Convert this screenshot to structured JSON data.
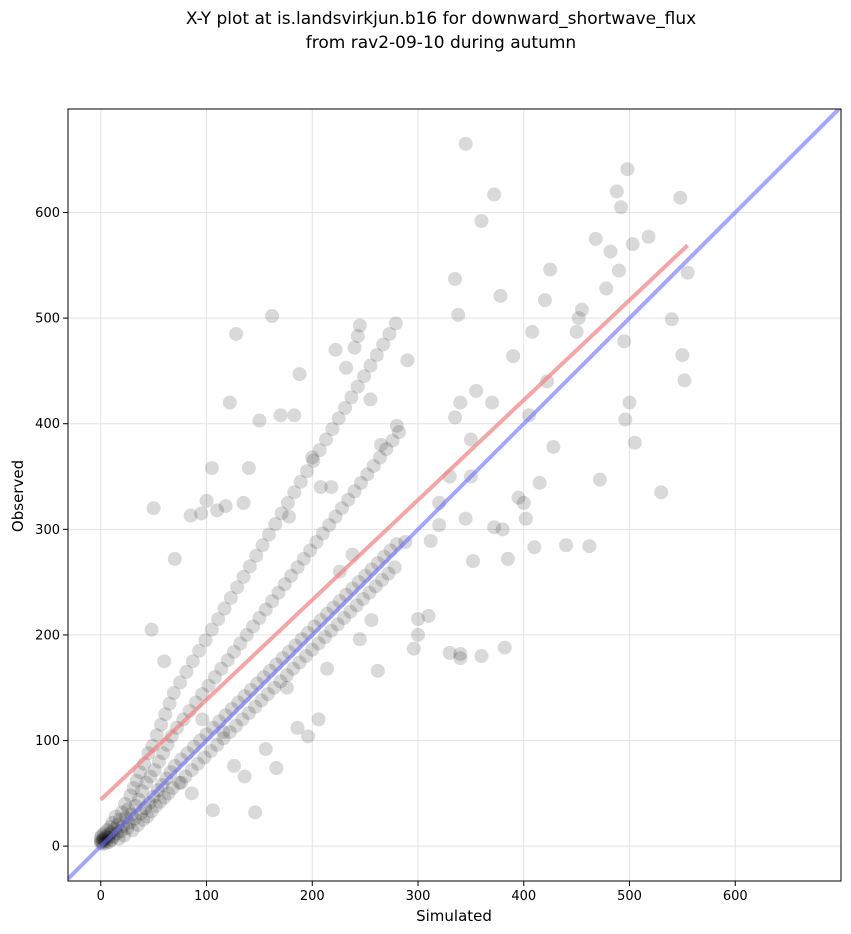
{
  "chart_data": {
    "type": "scatter",
    "title_line1": "X-Y plot at is.landsvirkjun.b16 for downward_shortwave_flux",
    "title_line2": "from rav2-09-10 during autumn",
    "xlabel": "Simulated",
    "ylabel": "Observed",
    "xlim": [
      -31,
      700
    ],
    "ylim": [
      -33,
      698
    ],
    "xticks": [
      0,
      100,
      200,
      300,
      400,
      500,
      600
    ],
    "yticks": [
      0,
      100,
      200,
      300,
      400,
      500,
      600
    ],
    "grid": true,
    "colors": {
      "points": "#000000",
      "fit_line": "#f08080",
      "identity_line": "#6a6aff"
    },
    "fit_line": {
      "x": [
        0,
        555
      ],
      "y": [
        44,
        569
      ]
    },
    "identity_line": {
      "x": [
        -31,
        700
      ],
      "y": [
        -31,
        700
      ]
    },
    "points": [
      [
        0,
        3
      ],
      [
        0,
        5
      ],
      [
        0,
        8
      ],
      [
        1,
        4
      ],
      [
        1,
        10
      ],
      [
        2,
        6
      ],
      [
        2,
        2
      ],
      [
        3,
        7
      ],
      [
        3,
        12
      ],
      [
        4,
        5
      ],
      [
        5,
        9
      ],
      [
        5,
        3
      ],
      [
        6,
        15
      ],
      [
        7,
        8
      ],
      [
        8,
        11
      ],
      [
        8,
        4
      ],
      [
        9,
        18
      ],
      [
        10,
        6
      ],
      [
        10,
        13
      ],
      [
        11,
        22
      ],
      [
        12,
        9
      ],
      [
        13,
        16
      ],
      [
        14,
        28
      ],
      [
        15,
        12
      ],
      [
        16,
        20
      ],
      [
        17,
        7
      ],
      [
        18,
        25
      ],
      [
        19,
        14
      ],
      [
        20,
        32
      ],
      [
        21,
        19
      ],
      [
        22,
        10
      ],
      [
        23,
        40
      ],
      [
        24,
        27
      ],
      [
        25,
        17
      ],
      [
        26,
        35
      ],
      [
        27,
        22
      ],
      [
        28,
        48
      ],
      [
        29,
        30
      ],
      [
        30,
        15
      ],
      [
        31,
        55
      ],
      [
        32,
        26
      ],
      [
        33,
        38
      ],
      [
        34,
        62
      ],
      [
        35,
        20
      ],
      [
        36,
        44
      ],
      [
        37,
        70
      ],
      [
        38,
        31
      ],
      [
        39,
        52
      ],
      [
        40,
        25
      ],
      [
        41,
        78
      ],
      [
        42,
        36
      ],
      [
        43,
        60
      ],
      [
        44,
        28
      ],
      [
        45,
        88
      ],
      [
        46,
        41
      ],
      [
        47,
        66
      ],
      [
        48,
        33
      ],
      [
        49,
        95
      ],
      [
        50,
        47
      ],
      [
        51,
        72
      ],
      [
        52,
        38
      ],
      [
        53,
        105
      ],
      [
        54,
        53
      ],
      [
        55,
        80
      ],
      [
        56,
        42
      ],
      [
        57,
        115
      ],
      [
        58,
        58
      ],
      [
        59,
        88
      ],
      [
        60,
        46
      ],
      [
        61,
        125
      ],
      [
        62,
        64
      ],
      [
        63,
        96
      ],
      [
        64,
        50
      ],
      [
        65,
        135
      ],
      [
        66,
        70
      ],
      [
        67,
        104
      ],
      [
        68,
        55
      ],
      [
        69,
        145
      ],
      [
        70,
        76
      ],
      [
        72,
        112
      ],
      [
        74,
        60
      ],
      [
        75,
        155
      ],
      [
        76,
        82
      ],
      [
        78,
        120
      ],
      [
        80,
        66
      ],
      [
        81,
        165
      ],
      [
        82,
        88
      ],
      [
        84,
        128
      ],
      [
        86,
        72
      ],
      [
        87,
        175
      ],
      [
        88,
        94
      ],
      [
        90,
        136
      ],
      [
        92,
        78
      ],
      [
        93,
        185
      ],
      [
        94,
        100
      ],
      [
        96,
        144
      ],
      [
        98,
        84
      ],
      [
        99,
        195
      ],
      [
        100,
        106
      ],
      [
        102,
        152
      ],
      [
        104,
        90
      ],
      [
        105,
        205
      ],
      [
        106,
        112
      ],
      [
        108,
        160
      ],
      [
        110,
        96
      ],
      [
        111,
        215
      ],
      [
        112,
        118
      ],
      [
        114,
        168
      ],
      [
        116,
        102
      ],
      [
        117,
        225
      ],
      [
        118,
        124
      ],
      [
        120,
        176
      ],
      [
        122,
        108
      ],
      [
        123,
        235
      ],
      [
        124,
        130
      ],
      [
        126,
        184
      ],
      [
        128,
        114
      ],
      [
        129,
        245
      ],
      [
        130,
        136
      ],
      [
        132,
        192
      ],
      [
        134,
        120
      ],
      [
        135,
        255
      ],
      [
        136,
        142
      ],
      [
        138,
        200
      ],
      [
        140,
        126
      ],
      [
        141,
        265
      ],
      [
        142,
        148
      ],
      [
        144,
        208
      ],
      [
        146,
        132
      ],
      [
        147,
        275
      ],
      [
        148,
        154
      ],
      [
        150,
        216
      ],
      [
        152,
        138
      ],
      [
        153,
        285
      ],
      [
        154,
        160
      ],
      [
        156,
        224
      ],
      [
        158,
        144
      ],
      [
        159,
        295
      ],
      [
        160,
        166
      ],
      [
        162,
        232
      ],
      [
        164,
        150
      ],
      [
        165,
        305
      ],
      [
        166,
        172
      ],
      [
        168,
        240
      ],
      [
        170,
        156
      ],
      [
        171,
        315
      ],
      [
        172,
        178
      ],
      [
        174,
        248
      ],
      [
        176,
        162
      ],
      [
        177,
        325
      ],
      [
        178,
        184
      ],
      [
        180,
        256
      ],
      [
        182,
        168
      ],
      [
        183,
        335
      ],
      [
        184,
        190
      ],
      [
        186,
        264
      ],
      [
        188,
        174
      ],
      [
        189,
        345
      ],
      [
        190,
        196
      ],
      [
        192,
        272
      ],
      [
        194,
        180
      ],
      [
        195,
        355
      ],
      [
        196,
        202
      ],
      [
        198,
        280
      ],
      [
        200,
        186
      ],
      [
        201,
        365
      ],
      [
        202,
        208
      ],
      [
        204,
        288
      ],
      [
        206,
        192
      ],
      [
        207,
        375
      ],
      [
        208,
        214
      ],
      [
        210,
        296
      ],
      [
        212,
        198
      ],
      [
        213,
        385
      ],
      [
        214,
        220
      ],
      [
        216,
        304
      ],
      [
        218,
        204
      ],
      [
        219,
        395
      ],
      [
        220,
        226
      ],
      [
        222,
        312
      ],
      [
        224,
        210
      ],
      [
        225,
        405
      ],
      [
        226,
        232
      ],
      [
        228,
        320
      ],
      [
        230,
        216
      ],
      [
        231,
        415
      ],
      [
        232,
        238
      ],
      [
        234,
        328
      ],
      [
        236,
        222
      ],
      [
        237,
        425
      ],
      [
        238,
        244
      ],
      [
        240,
        336
      ],
      [
        242,
        228
      ],
      [
        243,
        435
      ],
      [
        244,
        250
      ],
      [
        246,
        344
      ],
      [
        248,
        234
      ],
      [
        249,
        445
      ],
      [
        250,
        256
      ],
      [
        252,
        352
      ],
      [
        254,
        240
      ],
      [
        255,
        455
      ],
      [
        256,
        262
      ],
      [
        258,
        360
      ],
      [
        260,
        246
      ],
      [
        261,
        465
      ],
      [
        262,
        268
      ],
      [
        264,
        368
      ],
      [
        266,
        252
      ],
      [
        267,
        475
      ],
      [
        268,
        274
      ],
      [
        270,
        376
      ],
      [
        272,
        258
      ],
      [
        273,
        485
      ],
      [
        274,
        280
      ],
      [
        276,
        384
      ],
      [
        278,
        264
      ],
      [
        279,
        495
      ],
      [
        280,
        286
      ],
      [
        282,
        392
      ],
      [
        50,
        320
      ],
      [
        48,
        205
      ],
      [
        60,
        175
      ],
      [
        70,
        272
      ],
      [
        85,
        313
      ],
      [
        95,
        315
      ],
      [
        100,
        327
      ],
      [
        105,
        358
      ],
      [
        110,
        318
      ],
      [
        118,
        322
      ],
      [
        122,
        420
      ],
      [
        128,
        485
      ],
      [
        135,
        325
      ],
      [
        140,
        358
      ],
      [
        150,
        403
      ],
      [
        162,
        502
      ],
      [
        170,
        408
      ],
      [
        178,
        312
      ],
      [
        183,
        408
      ],
      [
        188,
        447
      ],
      [
        200,
        368
      ],
      [
        208,
        340
      ],
      [
        218,
        340
      ],
      [
        222,
        470
      ],
      [
        232,
        453
      ],
      [
        240,
        472
      ],
      [
        243,
        483
      ],
      [
        245,
        493
      ],
      [
        255,
        423
      ],
      [
        265,
        380
      ],
      [
        280,
        398
      ],
      [
        290,
        460
      ],
      [
        300,
        215
      ],
      [
        312,
        289
      ],
      [
        320,
        304
      ],
      [
        330,
        183
      ],
      [
        335,
        537
      ],
      [
        338,
        503
      ],
      [
        340,
        420
      ],
      [
        345,
        665
      ],
      [
        350,
        350
      ],
      [
        355,
        431
      ],
      [
        360,
        592
      ],
      [
        370,
        420
      ],
      [
        372,
        617
      ],
      [
        378,
        521
      ],
      [
        380,
        300
      ],
      [
        385,
        272
      ],
      [
        390,
        464
      ],
      [
        395,
        330
      ],
      [
        400,
        325
      ],
      [
        402,
        310
      ],
      [
        405,
        408
      ],
      [
        408,
        487
      ],
      [
        410,
        283
      ],
      [
        415,
        344
      ],
      [
        420,
        517
      ],
      [
        422,
        440
      ],
      [
        425,
        546
      ],
      [
        428,
        378
      ],
      [
        440,
        285
      ],
      [
        450,
        487
      ],
      [
        452,
        500
      ],
      [
        455,
        508
      ],
      [
        462,
        284
      ],
      [
        468,
        575
      ],
      [
        472,
        347
      ],
      [
        478,
        528
      ],
      [
        482,
        563
      ],
      [
        488,
        620
      ],
      [
        490,
        545
      ],
      [
        492,
        605
      ],
      [
        495,
        478
      ],
      [
        496,
        404
      ],
      [
        498,
        641
      ],
      [
        500,
        420
      ],
      [
        503,
        570
      ],
      [
        505,
        382
      ],
      [
        518,
        577
      ],
      [
        530,
        335
      ],
      [
        540,
        499
      ],
      [
        548,
        614
      ],
      [
        550,
        465
      ],
      [
        552,
        441
      ],
      [
        555,
        543
      ],
      [
        300,
        200
      ],
      [
        310,
        218
      ],
      [
        320,
        325
      ],
      [
        330,
        350
      ],
      [
        340,
        182
      ],
      [
        350,
        385
      ],
      [
        360,
        180
      ],
      [
        372,
        302
      ],
      [
        382,
        188
      ],
      [
        335,
        406
      ],
      [
        340,
        178
      ],
      [
        345,
        310
      ],
      [
        352,
        270
      ],
      [
        288,
        288
      ],
      [
        296,
        187
      ],
      [
        262,
        166
      ],
      [
        256,
        214
      ],
      [
        245,
        196
      ],
      [
        238,
        276
      ],
      [
        226,
        260
      ],
      [
        214,
        168
      ],
      [
        206,
        120
      ],
      [
        196,
        104
      ],
      [
        186,
        112
      ],
      [
        176,
        150
      ],
      [
        166,
        74
      ],
      [
        156,
        92
      ],
      [
        146,
        32
      ],
      [
        136,
        66
      ],
      [
        126,
        76
      ],
      [
        116,
        108
      ],
      [
        106,
        34
      ],
      [
        96,
        120
      ],
      [
        86,
        50
      ],
      [
        76,
        60
      ]
    ]
  }
}
